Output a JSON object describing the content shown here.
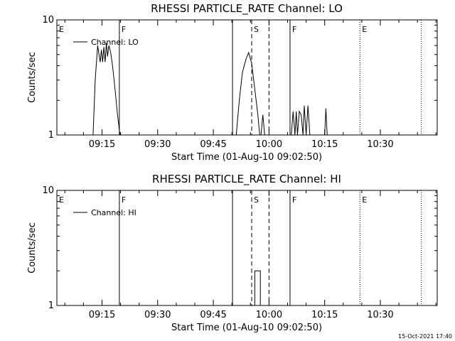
{
  "footer": {
    "timestamp": "15-Oct-2021 17:40"
  },
  "chart_data": [
    {
      "type": "line",
      "title": "RHESSI PARTICLE_RATE Channel: LO",
      "xlabel": "Start Time (01-Aug-10 09:02:50)",
      "ylabel": "Counts/sec",
      "yscale": "log",
      "ylim": [
        1,
        10
      ],
      "y_ticks": [
        "1",
        "10"
      ],
      "xlim": [
        0,
        6150
      ],
      "x_unit": "seconds since 09:02:50",
      "x_ticks": [
        {
          "label": "09:15",
          "t": 730
        },
        {
          "label": "09:30",
          "t": 1630
        },
        {
          "label": "09:45",
          "t": 2530
        },
        {
          "label": "10:00",
          "t": 3430
        },
        {
          "label": "10:15",
          "t": 4330
        },
        {
          "label": "10:30",
          "t": 5230
        }
      ],
      "legend": "Channel: LO",
      "series": [
        {
          "name": "Channel: LO",
          "x": [
            585,
            620,
            660,
            680,
            700,
            720,
            740,
            760,
            780,
            800,
            820,
            840,
            870,
            900,
            940,
            980,
            1020,
            2900,
            2950,
            3000,
            3060,
            3100,
            3150,
            3200,
            3250,
            3280,
            3300,
            3330,
            3360,
            3400,
            3790,
            3820,
            3850,
            3870,
            3890,
            3920,
            3950,
            3980,
            4000,
            4030,
            4060,
            4090,
            4330,
            4350,
            4370
          ],
          "y": [
            1,
            3.0,
            6.0,
            5.0,
            4.3,
            5.5,
            4.3,
            5.8,
            4.3,
            6.3,
            4.8,
            6.0,
            5.2,
            4.0,
            2.5,
            1.5,
            1,
            1,
            2.0,
            3.5,
            4.6,
            5.2,
            4.2,
            2.5,
            1.5,
            1,
            1,
            1.5,
            1,
            1,
            1,
            1.6,
            1,
            1.6,
            1,
            1.6,
            1.5,
            1,
            1.8,
            1,
            1.8,
            1,
            1,
            1.7,
            1
          ]
        }
      ],
      "markers": [
        {
          "label": "E",
          "t": -15,
          "style": "dotted"
        },
        {
          "label": "F",
          "t": 1010,
          "style": "solid"
        },
        {
          "label": "",
          "t": 2840,
          "style": "solid"
        },
        {
          "label": "S",
          "t": 3150,
          "style": "dashed"
        },
        {
          "label": "",
          "t": 3430,
          "style": "dashed"
        },
        {
          "label": "F",
          "t": 3770,
          "style": "solid"
        },
        {
          "label": "E",
          "t": 4900,
          "style": "dotted"
        },
        {
          "label": "",
          "t": 5890,
          "style": "dotted"
        }
      ]
    },
    {
      "type": "line",
      "title": "RHESSI PARTICLE_RATE Channel: HI",
      "xlabel": "Start Time (01-Aug-10 09:02:50)",
      "ylabel": "Counts/sec",
      "yscale": "log",
      "ylim": [
        1,
        10
      ],
      "y_ticks": [
        "1",
        "10"
      ],
      "xlim": [
        0,
        6150
      ],
      "x_unit": "seconds since 09:02:50",
      "x_ticks": [
        {
          "label": "09:15",
          "t": 730
        },
        {
          "label": "09:30",
          "t": 1630
        },
        {
          "label": "09:45",
          "t": 2530
        },
        {
          "label": "10:00",
          "t": 3430
        },
        {
          "label": "10:15",
          "t": 4330
        },
        {
          "label": "10:30",
          "t": 5230
        }
      ],
      "legend": "Channel: HI",
      "series": [
        {
          "name": "Channel: HI",
          "x": [
            3200,
            3200,
            3290,
            3290
          ],
          "y": [
            1,
            2,
            2,
            1
          ]
        }
      ],
      "markers": [
        {
          "label": "E",
          "t": -15,
          "style": "dotted"
        },
        {
          "label": "F",
          "t": 1010,
          "style": "solid"
        },
        {
          "label": "",
          "t": 2840,
          "style": "solid"
        },
        {
          "label": "S",
          "t": 3150,
          "style": "dashed"
        },
        {
          "label": "",
          "t": 3430,
          "style": "dashed"
        },
        {
          "label": "F",
          "t": 3770,
          "style": "solid"
        },
        {
          "label": "E",
          "t": 4900,
          "style": "dotted"
        },
        {
          "label": "",
          "t": 5890,
          "style": "dotted"
        }
      ]
    }
  ]
}
